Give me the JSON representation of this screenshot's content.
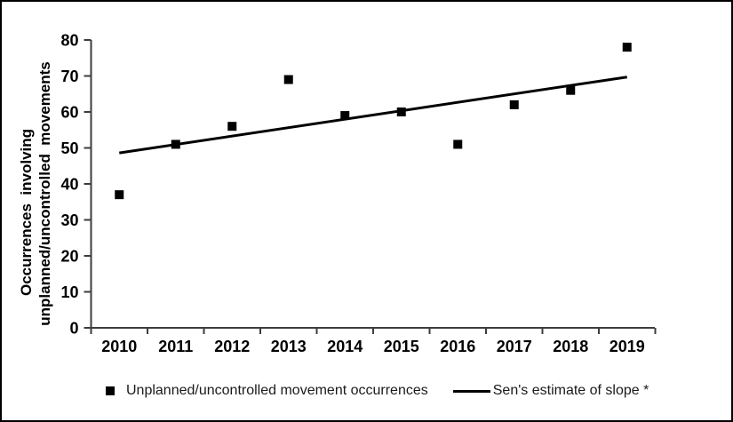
{
  "figure": {
    "background": "#ffffff",
    "border_color": "#000000"
  },
  "chart_data": {
    "type": "scatter",
    "title": "",
    "xlabel": "",
    "ylabel_lines": [
      "Occurrences  involving",
      "unplanned/uncontrolled  movements"
    ],
    "x_categories": [
      "2010",
      "2011",
      "2012",
      "2013",
      "2014",
      "2015",
      "2016",
      "2017",
      "2018",
      "2019"
    ],
    "y_axis": {
      "min": 0,
      "max": 80,
      "tick_step": 10,
      "tick_labels": [
        "0",
        "10",
        "20",
        "30",
        "40",
        "50",
        "60",
        "70",
        "80"
      ]
    },
    "grid": false,
    "legend_position": "bottom",
    "series": [
      {
        "name": "Unplanned/uncontrolled movement occurrences",
        "type": "scatter",
        "marker": "square",
        "values": [
          37,
          51,
          56,
          69,
          59,
          60,
          51,
          62,
          66,
          78
        ]
      },
      {
        "name": "Sen's estimate of slope *",
        "type": "line",
        "start_value": 48.6,
        "end_value": 69.7
      }
    ],
    "legend": [
      {
        "marker": "square",
        "label": "Unplanned/uncontrolled movement occurrences"
      },
      {
        "marker": "line",
        "label": "Sen's estimate of slope *"
      }
    ],
    "colors": {
      "marker": "#000000",
      "trend_line": "#000000",
      "axis": "#3d3d3d",
      "text": "#000000"
    }
  }
}
